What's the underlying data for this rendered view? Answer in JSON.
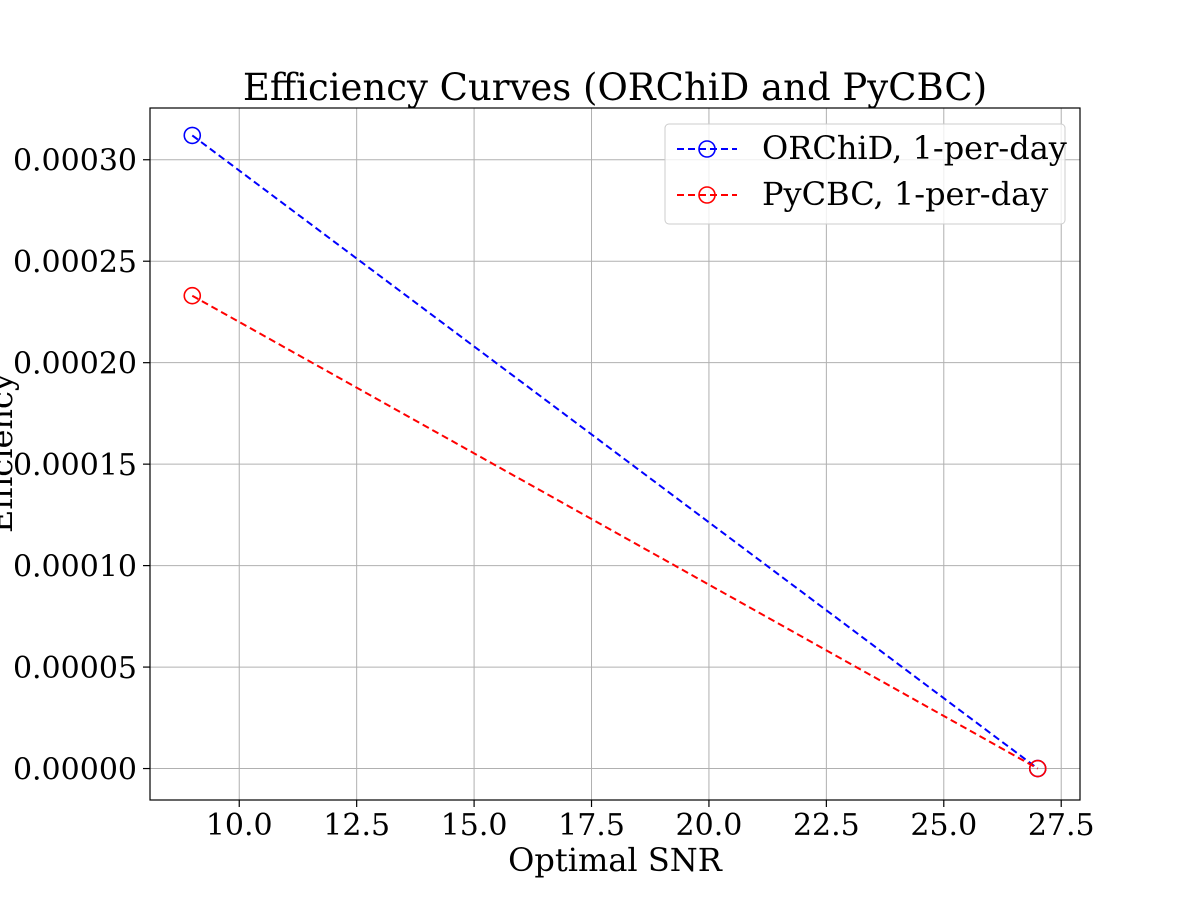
{
  "chart_data": {
    "type": "line",
    "title": "Efficiency Curves (ORChiD and PyCBC)",
    "xlabel": "Optimal SNR",
    "ylabel": "Efficiency",
    "xlim": [
      8.1,
      27.9
    ],
    "ylim": [
      -1.55e-05,
      0.0003255
    ],
    "xticks": [
      10.0,
      12.5,
      15.0,
      17.5,
      20.0,
      22.5,
      25.0,
      27.5
    ],
    "xtick_labels": [
      "10.0",
      "12.5",
      "15.0",
      "17.5",
      "20.0",
      "22.5",
      "25.0",
      "27.5"
    ],
    "yticks": [
      0.0,
      5e-05,
      0.0001,
      0.00015,
      0.0002,
      0.00025,
      0.0003
    ],
    "ytick_labels": [
      "0.00000",
      "0.00005",
      "0.00010",
      "0.00015",
      "0.00020",
      "0.00025",
      "0.00030"
    ],
    "grid": true,
    "legend_position": "top-right",
    "series": [
      {
        "name": "ORChiD, 1-per-day",
        "color": "#0000ff",
        "style": "dashed",
        "marker": "open-circle",
        "x": [
          9.0,
          27.0
        ],
        "y": [
          0.000312,
          0.0
        ]
      },
      {
        "name": "PyCBC, 1-per-day",
        "color": "#ff0000",
        "style": "dashed",
        "marker": "open-circle",
        "x": [
          9.0,
          27.0
        ],
        "y": [
          0.000233,
          0.0
        ]
      }
    ]
  }
}
